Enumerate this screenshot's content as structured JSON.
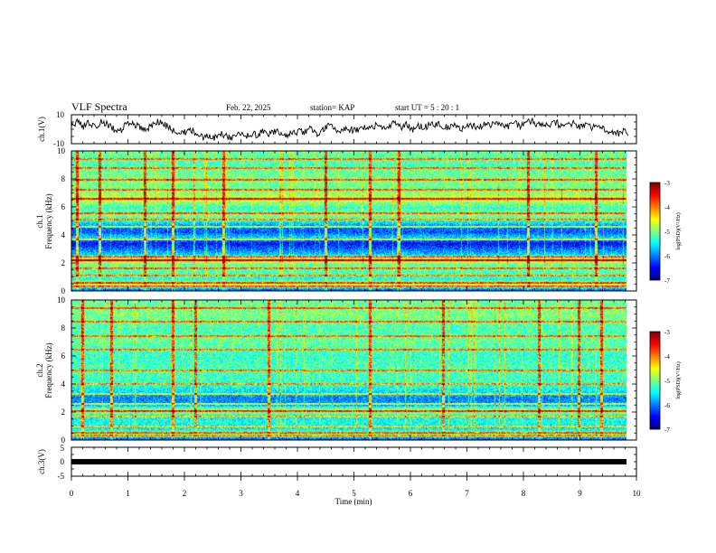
{
  "header": {
    "title": "VLF Spectra",
    "date": "Feb. 22, 2025",
    "station": "station= KAP",
    "start_ut": "start  UT =   5  : 20 : 1"
  },
  "colors": {
    "ink": "#000000",
    "background": "#ffffff"
  },
  "chart_data": [
    {
      "type": "line",
      "name": "ch1-waveform",
      "ylabel": "ch.1(V)",
      "ylim": [
        -10,
        10
      ],
      "yticks": [
        "10",
        "-10"
      ],
      "xlim": [
        0,
        9.85
      ],
      "y_values": [
        3,
        5,
        2,
        4,
        1,
        6,
        3,
        0,
        -2,
        3,
        5,
        2,
        -1,
        1,
        4,
        6,
        2,
        -1,
        -4,
        -2,
        0,
        -3,
        -5,
        -4,
        -6,
        -3,
        -5,
        -6,
        -4,
        -5,
        -3,
        -4,
        -2,
        -3,
        -1,
        -2,
        -4,
        -3,
        -1,
        -2,
        0,
        -3,
        -1,
        2,
        0,
        -2,
        1,
        -1,
        0,
        2,
        1,
        3,
        0,
        2,
        4,
        1,
        3,
        0,
        2,
        1,
        3,
        4,
        2,
        1,
        3,
        0,
        2,
        3,
        1,
        4,
        2,
        5,
        3,
        1,
        4,
        2,
        5,
        6,
        3,
        4,
        2,
        5,
        1,
        3,
        4,
        2,
        3,
        1,
        2,
        0,
        -2,
        -4,
        -1,
        -3
      ]
    },
    {
      "type": "heatmap",
      "name": "ch1-spectrogram",
      "ylabel": "ch.1",
      "ylabel2": "Frequency (kHz)",
      "ylim": [
        0,
        10
      ],
      "yticks": [
        "0",
        "2",
        "4",
        "6",
        "8",
        "10"
      ],
      "xlim": [
        0,
        9.85
      ],
      "level_profile": [
        {
          "f": 0.0,
          "v": -6.3
        },
        {
          "f": 0.4,
          "v": -4.6
        },
        {
          "f": 0.8,
          "v": -5.4
        },
        {
          "f": 1.3,
          "v": -5.2
        },
        {
          "f": 1.9,
          "v": -5.1
        },
        {
          "f": 2.2,
          "v": -4.2
        },
        {
          "f": 2.6,
          "v": -5.7
        },
        {
          "f": 3.0,
          "v": -6.1
        },
        {
          "f": 3.4,
          "v": -6.5
        },
        {
          "f": 3.8,
          "v": -5.6
        },
        {
          "f": 4.2,
          "v": -6.2
        },
        {
          "f": 4.6,
          "v": -6.0
        },
        {
          "f": 5.0,
          "v": -5.4
        },
        {
          "f": 5.4,
          "v": -5.0
        },
        {
          "f": 6.0,
          "v": -5.3
        },
        {
          "f": 6.6,
          "v": -4.6
        },
        {
          "f": 7.2,
          "v": -5.1
        },
        {
          "f": 8.0,
          "v": -5.0
        },
        {
          "f": 9.0,
          "v": -5.2
        },
        {
          "f": 10.0,
          "v": -5.1
        }
      ],
      "lines_khz": [
        0.3,
        0.6,
        1.1,
        1.6,
        2.2,
        2.5,
        3.7,
        4.6,
        5.1,
        5.6,
        6.6,
        7.3,
        8.0,
        8.8,
        9.5
      ],
      "bursts_min": [
        0.1,
        0.5,
        1.3,
        1.8,
        2.7,
        4.5,
        5.3,
        5.8,
        8.1,
        9.3
      ]
    },
    {
      "type": "heatmap",
      "name": "ch2-spectrogram",
      "ylabel": "ch.2",
      "ylabel2": "Frequency (kHz)",
      "ylim": [
        0,
        10
      ],
      "yticks": [
        "0",
        "2",
        "4",
        "6",
        "8",
        "10"
      ],
      "xlim": [
        0,
        9.85
      ],
      "level_profile": [
        {
          "f": 0.0,
          "v": -6.2
        },
        {
          "f": 0.4,
          "v": -4.9
        },
        {
          "f": 0.8,
          "v": -5.6
        },
        {
          "f": 1.2,
          "v": -5.4
        },
        {
          "f": 1.7,
          "v": -5.5
        },
        {
          "f": 2.1,
          "v": -4.7
        },
        {
          "f": 2.5,
          "v": -5.9
        },
        {
          "f": 3.0,
          "v": -6.0
        },
        {
          "f": 3.4,
          "v": -5.6
        },
        {
          "f": 4.0,
          "v": -5.3
        },
        {
          "f": 5.0,
          "v": -5.2
        },
        {
          "f": 6.0,
          "v": -5.3
        },
        {
          "f": 7.0,
          "v": -5.1
        },
        {
          "f": 8.0,
          "v": -5.2
        },
        {
          "f": 9.0,
          "v": -5.0
        },
        {
          "f": 10.0,
          "v": -5.1
        }
      ],
      "lines_khz": [
        0.3,
        0.5,
        1.0,
        1.7,
        2.1,
        2.6,
        3.3,
        4.0,
        5.0,
        6.5,
        7.5,
        8.5,
        9.5
      ],
      "bursts_min": [
        0.2,
        0.7,
        1.8,
        2.2,
        3.5,
        5.3,
        6.6,
        8.3,
        9.0,
        9.4
      ]
    },
    {
      "type": "line",
      "name": "ch3-waveform",
      "ylabel": "ch.3(V)",
      "ylim": [
        -5,
        5
      ],
      "yticks": [
        "5",
        "0",
        "-5"
      ],
      "xlim": [
        0,
        9.85
      ],
      "constant_value": 0,
      "xlabel": "Time  (min)",
      "xlim_axis": [
        0,
        10
      ],
      "xticks": [
        "0",
        "1",
        "2",
        "3",
        "4",
        "5",
        "6",
        "7",
        "8",
        "9",
        "10"
      ]
    }
  ],
  "colorbar": {
    "ticks": [
      "-3",
      "-4",
      "-5",
      "-6",
      "-7"
    ],
    "range": [
      -7,
      -3
    ],
    "label": "log(PSD)(V²/Hz)"
  }
}
